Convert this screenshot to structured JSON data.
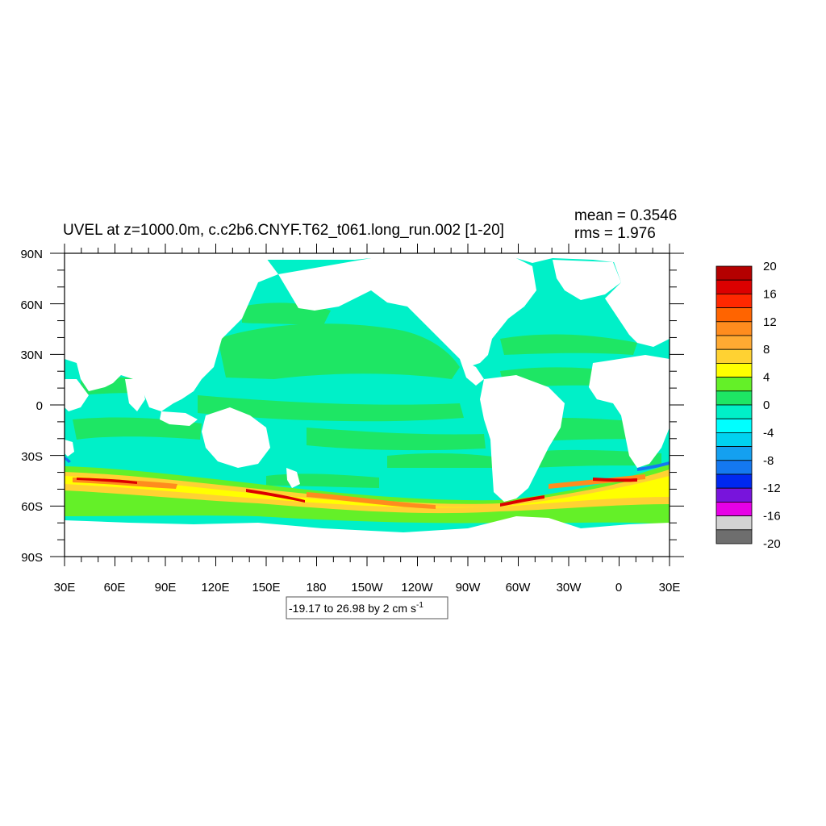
{
  "title": "UVEL at z=1000.0m, c.c2b6.CNYF.T62_t061.long_run.002 [1-20]",
  "stats": {
    "mean": "mean = 0.3546",
    "rms": "rms = 1.976"
  },
  "contour_info": {
    "text": "-19.17 to 26.98 by 2 cm s",
    "unit_superscript": "-1"
  },
  "y_ticks": [
    "90N",
    "60N",
    "30N",
    "0",
    "30S",
    "60S",
    "90S"
  ],
  "x_ticks": [
    "30E",
    "60E",
    "90E",
    "120E",
    "150E",
    "180",
    "150W",
    "120W",
    "90W",
    "60W",
    "30W",
    "0",
    "30E"
  ],
  "colorbar": {
    "labels": [
      "20",
      "16",
      "12",
      "8",
      "4",
      "0",
      "-4",
      "-8",
      "-12",
      "-16",
      "-20"
    ],
    "colors": [
      "#b40000",
      "#dc0000",
      "#ff2800",
      "#ff6400",
      "#ff8c1e",
      "#ffaa32",
      "#ffd232",
      "#ffff00",
      "#64f028",
      "#1ee664",
      "#00f0c8",
      "#00ffff",
      "#00d2f0",
      "#14a0f0",
      "#1478f0",
      "#0028f0",
      "#7814dc",
      "#e600e6",
      "#d2d2d2",
      "#6e6e6e"
    ]
  },
  "map": {
    "land_color": "#ffffff",
    "background_ocean_color": "#00f0c8",
    "band_colors": {
      "green": "#1ee664",
      "yellow": "#ffff00",
      "gold": "#ffd232",
      "orange": "#ff8c1e",
      "red": "#dc0000",
      "lightgreen": "#64f028",
      "blue": "#1478f0"
    }
  }
}
